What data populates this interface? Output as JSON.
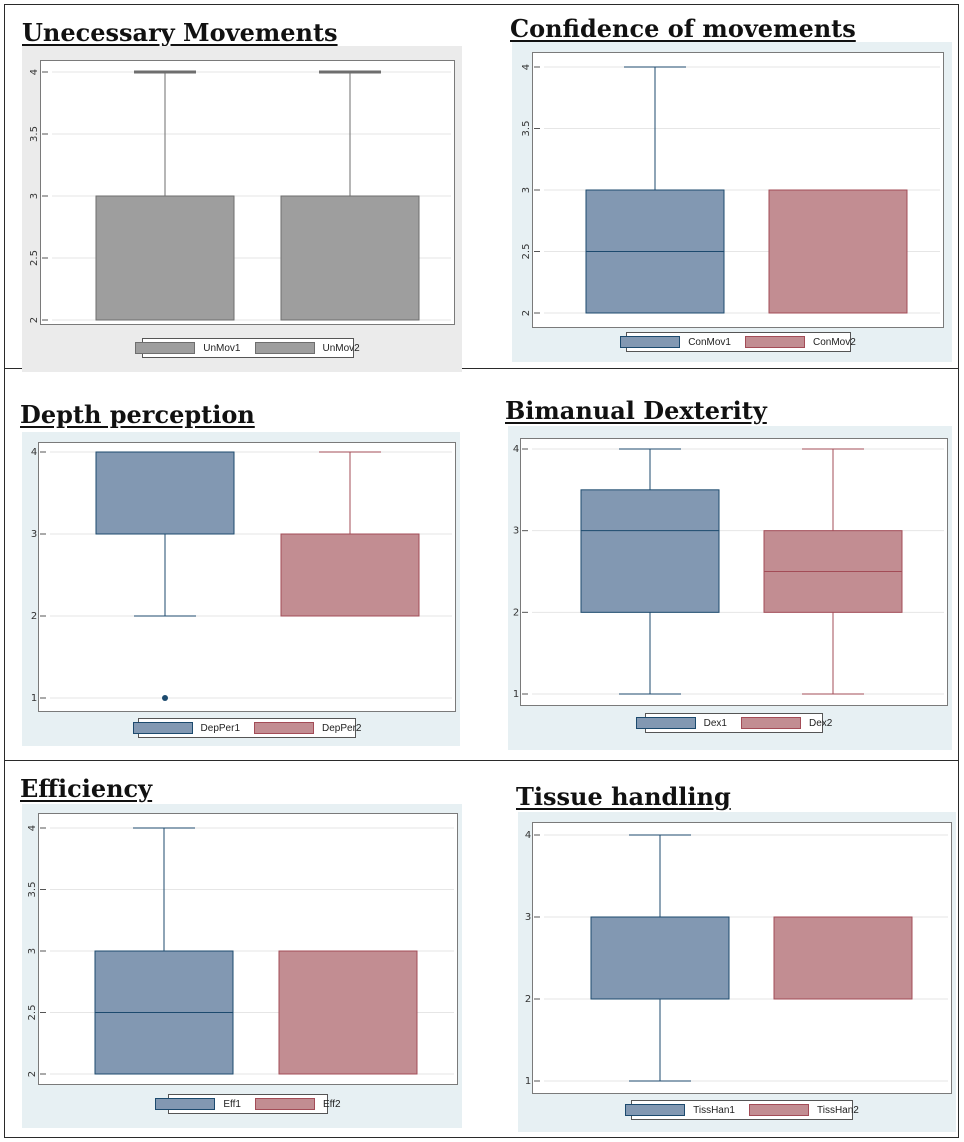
{
  "colors": {
    "blue_box": "#8298b2",
    "blue_line": "#1c4a6e",
    "red_box": "#c28d92",
    "red_line": "#a34c57",
    "gray_box": "#9e9e9e",
    "gray_line": "#6e6e6e",
    "panel_bg_gray": "#ebebeb",
    "panel_bg_blue": "#e7f0f3"
  },
  "chart_data": [
    {
      "type": "box",
      "title": "Unecessary Movements",
      "ylim": [
        2,
        4
      ],
      "yticks": [
        "2",
        "2.5",
        "3",
        "3.5",
        "4"
      ],
      "grid": true,
      "legend_position": "bottom",
      "series": [
        {
          "name": "UnMov1",
          "min": 2,
          "q1": 2,
          "median": 2,
          "q3": 3,
          "max": 4,
          "outliers": []
        },
        {
          "name": "UnMov2",
          "min": 2,
          "q1": 2,
          "median": 2,
          "q3": 3,
          "max": 4,
          "outliers": []
        }
      ]
    },
    {
      "type": "box",
      "title": "Confidence of movements",
      "ylim": [
        2,
        4
      ],
      "yticks": [
        "2",
        "2.5",
        "3",
        "3.5",
        "4"
      ],
      "grid": true,
      "legend_position": "bottom",
      "series": [
        {
          "name": "ConMov1",
          "min": 2,
          "q1": 2,
          "median": 2.5,
          "q3": 3,
          "max": 4,
          "outliers": []
        },
        {
          "name": "ConMov2",
          "min": 2,
          "q1": 2,
          "median": 2,
          "q3": 3,
          "max": 3,
          "outliers": []
        }
      ]
    },
    {
      "type": "box",
      "title": "Depth perception",
      "ylim": [
        1,
        4
      ],
      "yticks": [
        "1",
        "2",
        "3",
        "4"
      ],
      "grid": true,
      "legend_position": "bottom",
      "series": [
        {
          "name": "DepPer1",
          "min": 2,
          "q1": 3,
          "median": 3,
          "q3": 4,
          "max": 4,
          "outliers": [
            1
          ]
        },
        {
          "name": "DepPer2",
          "min": 2,
          "q1": 2,
          "median": 2,
          "q3": 3,
          "max": 4,
          "outliers": []
        }
      ]
    },
    {
      "type": "box",
      "title": "Bimanual Dexterity",
      "ylim": [
        1,
        4
      ],
      "yticks": [
        "1",
        "2",
        "3",
        "4"
      ],
      "grid": true,
      "legend_position": "bottom",
      "series": [
        {
          "name": "Dex1",
          "min": 1,
          "q1": 2,
          "median": 3,
          "q3": 3.5,
          "max": 4,
          "outliers": []
        },
        {
          "name": "Dex2",
          "min": 1,
          "q1": 2,
          "median": 2.5,
          "q3": 3,
          "max": 4,
          "outliers": []
        }
      ]
    },
    {
      "type": "box",
      "title": "Efficiency",
      "ylim": [
        2,
        4
      ],
      "yticks": [
        "2",
        "2.5",
        "3",
        "3.5",
        "4"
      ],
      "grid": true,
      "legend_position": "bottom",
      "series": [
        {
          "name": "Eff1",
          "min": 2,
          "q1": 2,
          "median": 2.5,
          "q3": 3,
          "max": 4,
          "outliers": []
        },
        {
          "name": "Eff2",
          "min": 2,
          "q1": 2,
          "median": 2,
          "q3": 3,
          "max": 3,
          "outliers": []
        }
      ]
    },
    {
      "type": "box",
      "title": "Tissue handling",
      "ylim": [
        1,
        4
      ],
      "yticks": [
        "1",
        "2",
        "3",
        "4"
      ],
      "grid": true,
      "legend_position": "bottom",
      "series": [
        {
          "name": "TissHan1",
          "min": 1,
          "q1": 2,
          "median": 2,
          "q3": 3,
          "max": 4,
          "outliers": []
        },
        {
          "name": "TissHan2",
          "min": 2,
          "q1": 2,
          "median": 2,
          "q3": 3,
          "max": 3,
          "outliers": []
        }
      ]
    }
  ]
}
